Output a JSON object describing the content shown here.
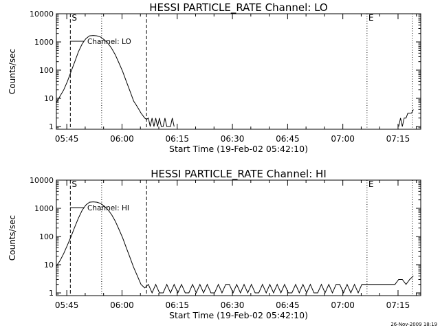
{
  "footer": {
    "timestamp": "26-Nov-2009 18:19"
  },
  "chart_data": [
    {
      "type": "line",
      "title": "HESSI PARTICLE_RATE Channel: LO",
      "xlabel": "Start Time (19-Feb-02 05:42:10)",
      "ylabel": "Counts/sec",
      "x_unit": "minutes after 05:42:10",
      "xlim": [
        0,
        99
      ],
      "ylim": [
        0.8,
        10000
      ],
      "yscale": "log",
      "yticks": [
        1,
        10,
        100,
        1000,
        10000
      ],
      "ytick_labels": [
        "1",
        "10",
        "100",
        "1000",
        "10000"
      ],
      "xtick_minutes": [
        2.83,
        17.83,
        32.83,
        47.83,
        62.83,
        77.83,
        92.83
      ],
      "xtick_labels": [
        "05:45",
        "06:00",
        "06:15",
        "06:30",
        "06:45",
        "07:00",
        "07:15"
      ],
      "legend": {
        "label": "Channel: LO",
        "placement": "top-left"
      },
      "markers": [
        {
          "label": "S",
          "x": 3.8,
          "style": "dashed"
        },
        {
          "label": "",
          "x": 24.5,
          "style": "dashed"
        },
        {
          "label": "",
          "x": 12.3,
          "style": "dotted"
        },
        {
          "label": "E",
          "x": 84.4,
          "style": "dotted"
        },
        {
          "label": "",
          "x": 96.7,
          "style": "dotted"
        }
      ],
      "series": [
        {
          "name": "Channel: LO",
          "x": [
            0,
            1,
            2,
            3,
            4,
            5,
            6,
            7,
            8,
            9,
            10,
            11,
            12,
            13,
            14,
            15,
            16,
            17,
            18,
            19,
            20,
            21,
            22,
            23,
            24,
            24.5,
            25,
            25.5,
            26,
            26.5,
            27,
            27.5,
            28,
            28.5,
            29,
            29.5,
            30,
            30.5,
            31,
            31.5,
            32
          ],
          "y": [
            7,
            12,
            20,
            40,
            90,
            200,
            450,
            850,
            1300,
            1650,
            1700,
            1650,
            1500,
            1200,
            900,
            600,
            350,
            180,
            90,
            40,
            18,
            8,
            5,
            3,
            2,
            1.8,
            2,
            1,
            2,
            1,
            2,
            1,
            2,
            1,
            1,
            2,
            1,
            1,
            1,
            2,
            1
          ]
        },
        {
          "name": "",
          "x": [
            93,
            93.5,
            94,
            94.5,
            95,
            95.5,
            96,
            96.5,
            97
          ],
          "y": [
            1,
            2,
            1,
            2,
            2,
            3,
            3,
            3,
            4
          ]
        }
      ]
    },
    {
      "type": "line",
      "title": "HESSI PARTICLE_RATE Channel: HI",
      "xlabel": "Start Time (19-Feb-02 05:42:10)",
      "ylabel": "Counts/sec",
      "x_unit": "minutes after 05:42:10",
      "xlim": [
        0,
        99
      ],
      "ylim": [
        0.8,
        10000
      ],
      "yscale": "log",
      "yticks": [
        1,
        10,
        100,
        1000,
        10000
      ],
      "ytick_labels": [
        "1",
        "10",
        "100",
        "1000",
        "10000"
      ],
      "xtick_minutes": [
        2.83,
        17.83,
        32.83,
        47.83,
        62.83,
        77.83,
        92.83
      ],
      "xtick_labels": [
        "05:45",
        "06:00",
        "06:15",
        "06:30",
        "06:45",
        "07:00",
        "07:15"
      ],
      "legend": {
        "label": "Channel: HI",
        "placement": "top-left"
      },
      "markers": [
        {
          "label": "S",
          "x": 3.8,
          "style": "dashed"
        },
        {
          "label": "",
          "x": 24.5,
          "style": "dashed"
        },
        {
          "label": "",
          "x": 12.3,
          "style": "dotted"
        },
        {
          "label": "E",
          "x": 84.4,
          "style": "dotted"
        },
        {
          "label": "",
          "x": 96.7,
          "style": "dotted"
        }
      ],
      "series": [
        {
          "name": "Channel: HI",
          "x": [
            0,
            1,
            2,
            3,
            4,
            5,
            6,
            7,
            8,
            9,
            10,
            11,
            12,
            13,
            14,
            15,
            16,
            17,
            18,
            19,
            20,
            21,
            22,
            23,
            24,
            25,
            26,
            27,
            28,
            29,
            30,
            31,
            32,
            33,
            34,
            35,
            36,
            37,
            38,
            39,
            40,
            41,
            42,
            43,
            44,
            45,
            46,
            47,
            48,
            49,
            50,
            51,
            52,
            53,
            54,
            55,
            56,
            57,
            58,
            59,
            60,
            61,
            62,
            63,
            64,
            65,
            66,
            67,
            68,
            69,
            70,
            71,
            72,
            73,
            74,
            75,
            76,
            77,
            78,
            79,
            80,
            81,
            82,
            83,
            84,
            85,
            86,
            87,
            88,
            89,
            90,
            91,
            92,
            93,
            94,
            95,
            96,
            97
          ],
          "y": [
            9,
            14,
            25,
            50,
            100,
            220,
            450,
            850,
            1300,
            1650,
            1700,
            1650,
            1500,
            1200,
            900,
            600,
            350,
            180,
            90,
            40,
            18,
            8,
            4,
            2,
            1.5,
            2,
            1,
            2,
            1,
            1,
            2,
            1,
            2,
            1,
            2,
            1,
            1,
            2,
            1,
            2,
            1,
            2,
            1,
            1,
            2,
            1,
            2,
            2,
            1,
            2,
            1,
            2,
            1,
            2,
            1,
            1,
            2,
            1,
            2,
            1,
            2,
            1,
            2,
            1,
            1,
            2,
            1,
            2,
            1,
            2,
            1,
            1,
            2,
            1,
            2,
            1,
            2,
            2,
            1,
            2,
            1,
            2,
            1,
            2,
            2,
            2,
            2,
            2,
            2,
            2,
            2,
            2,
            2,
            3,
            3,
            2,
            3,
            4
          ]
        }
      ]
    }
  ]
}
